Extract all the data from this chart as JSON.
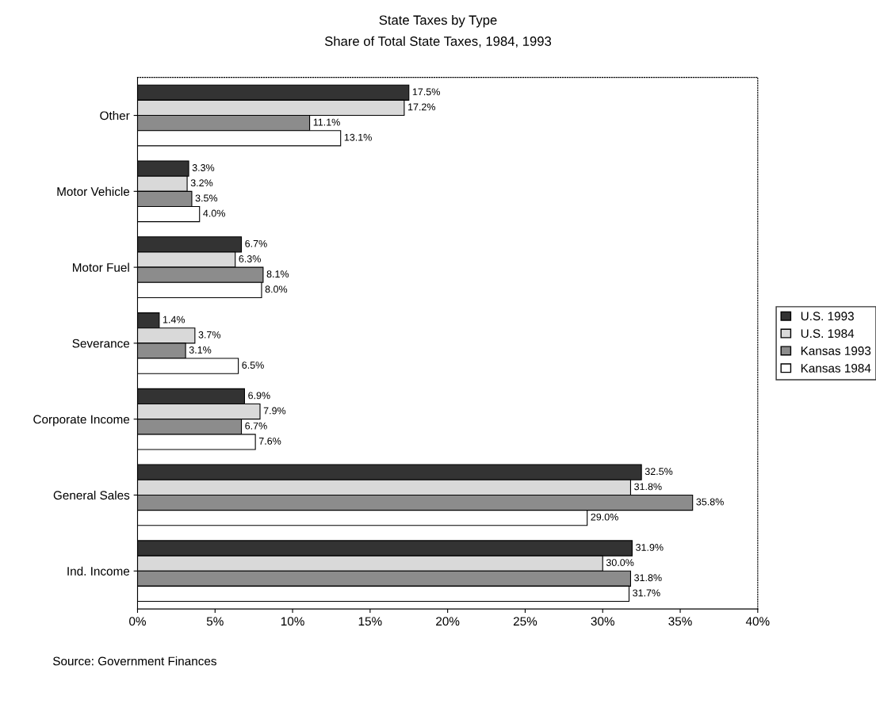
{
  "chart_data": {
    "type": "bar",
    "orientation": "horizontal",
    "title": "State Taxes by Type",
    "subtitle": "Share of Total State Taxes, 1984, 1993",
    "categories": [
      "Other",
      "Motor Vehicle",
      "Motor Fuel",
      "Severance",
      "Corporate Income",
      "General Sales",
      "Ind. Income"
    ],
    "series": [
      {
        "name": "U.S. 1993",
        "color": "#333333",
        "values": [
          17.5,
          3.3,
          6.7,
          1.4,
          6.9,
          32.5,
          31.9
        ],
        "value_labels": [
          "17.5%",
          "3.3%",
          "6.7%",
          "1.4%",
          "6.9%",
          "32.5%",
          "31.9%"
        ]
      },
      {
        "name": "U.S. 1984",
        "color": "#d9d9d9",
        "values": [
          17.2,
          3.2,
          6.3,
          3.7,
          7.9,
          31.8,
          30.0
        ],
        "value_labels": [
          "17.2%",
          "3.2%",
          "6.3%",
          "3.7%",
          "7.9%",
          "31.8%",
          "30.0%"
        ]
      },
      {
        "name": "Kansas 1993",
        "color": "#8c8c8c",
        "values": [
          11.1,
          3.5,
          8.1,
          3.1,
          6.7,
          35.8,
          31.8
        ],
        "value_labels": [
          "11.1%",
          "3.5%",
          "8.1%",
          "3.1%",
          "6.7%",
          "35.8%",
          "31.8%"
        ]
      },
      {
        "name": "Kansas 1984",
        "color": "#ffffff",
        "values": [
          13.1,
          4.0,
          8.0,
          6.5,
          7.6,
          29.0,
          31.7
        ],
        "value_labels": [
          "13.1%",
          "4.0%",
          "8.0%",
          "6.5%",
          "7.6%",
          "29.0%",
          "31.7%"
        ]
      }
    ],
    "xlim": [
      0,
      40
    ],
    "xticks": [
      {
        "value": 0,
        "label": "0%"
      },
      {
        "value": 5,
        "label": "5%"
      },
      {
        "value": 10,
        "label": "10%"
      },
      {
        "value": 15,
        "label": "15%"
      },
      {
        "value": 20,
        "label": "20%"
      },
      {
        "value": 25,
        "label": "25%"
      },
      {
        "value": 30,
        "label": "30%"
      },
      {
        "value": 35,
        "label": "35%"
      },
      {
        "value": 40,
        "label": "40%"
      }
    ],
    "legend": "right",
    "grid": false,
    "annotations": [
      "Source: Government Finances"
    ]
  }
}
